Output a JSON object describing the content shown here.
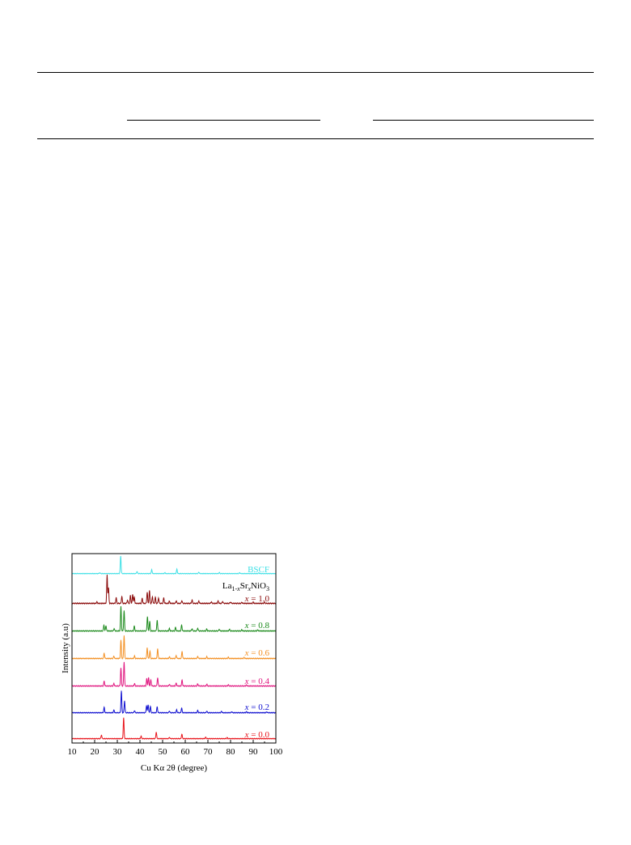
{
  "table": {
    "rules": [
      "top-rule",
      "sub-rule-left",
      "sub-rule-right",
      "bottom-rule"
    ]
  },
  "chart_data": {
    "type": "line",
    "xlabel": "Cu Kα 2θ (degree)",
    "ylabel": "Intensity (a.u)",
    "xlim": [
      10,
      100
    ],
    "xticks": [
      10,
      20,
      30,
      40,
      50,
      60,
      70,
      80,
      90,
      100
    ],
    "compound_label": "La1-xSrxNiO3",
    "series": [
      {
        "name": "x = 0.0",
        "color": "#e8141b",
        "peaks": [
          [
            23.0,
            0.18
          ],
          [
            32.8,
            1.0
          ],
          [
            40.5,
            0.12
          ],
          [
            47.2,
            0.32
          ],
          [
            53.0,
            0.06
          ],
          [
            58.5,
            0.22
          ],
          [
            69.0,
            0.07
          ],
          [
            78.5,
            0.05
          ]
        ]
      },
      {
        "name": "x = 0.2",
        "color": "#1010d0",
        "peaks": [
          [
            24.2,
            0.25
          ],
          [
            28.5,
            0.12
          ],
          [
            31.8,
            1.0
          ],
          [
            33.2,
            0.55
          ],
          [
            37.6,
            0.1
          ],
          [
            42.9,
            0.32
          ],
          [
            43.6,
            0.38
          ],
          [
            44.6,
            0.3
          ],
          [
            47.6,
            0.28
          ],
          [
            53.0,
            0.08
          ],
          [
            56.2,
            0.14
          ],
          [
            58.4,
            0.22
          ],
          [
            65.5,
            0.1
          ],
          [
            69.5,
            0.08
          ],
          [
            76.0,
            0.06
          ],
          [
            80.5,
            0.05
          ],
          [
            87.0,
            0.05
          ],
          [
            96.0,
            0.04
          ]
        ]
      },
      {
        "name": "x = 0.4",
        "color": "#e0157f",
        "peaks": [
          [
            24.2,
            0.2
          ],
          [
            28.5,
            0.1
          ],
          [
            31.6,
            0.75
          ],
          [
            33.0,
            1.0
          ],
          [
            37.6,
            0.1
          ],
          [
            43.0,
            0.3
          ],
          [
            43.8,
            0.35
          ],
          [
            44.8,
            0.25
          ],
          [
            47.8,
            0.35
          ],
          [
            53.0,
            0.07
          ],
          [
            56.0,
            0.12
          ],
          [
            58.6,
            0.25
          ],
          [
            65.5,
            0.09
          ],
          [
            69.5,
            0.07
          ],
          [
            79.0,
            0.05
          ],
          [
            87.0,
            0.04
          ]
        ]
      },
      {
        "name": "x = 0.6",
        "color": "#f39024",
        "peaks": [
          [
            24.2,
            0.22
          ],
          [
            28.5,
            0.1
          ],
          [
            31.6,
            0.75
          ],
          [
            33.0,
            0.95
          ],
          [
            37.6,
            0.1
          ],
          [
            43.2,
            0.45
          ],
          [
            44.4,
            0.3
          ],
          [
            47.8,
            0.4
          ],
          [
            53.0,
            0.07
          ],
          [
            56.0,
            0.12
          ],
          [
            58.6,
            0.3
          ],
          [
            65.5,
            0.09
          ],
          [
            69.5,
            0.07
          ],
          [
            79.0,
            0.05
          ],
          [
            86.0,
            0.04
          ]
        ]
      },
      {
        "name": "x = 0.8",
        "color": "#1c8a1c",
        "peaks": [
          [
            24.1,
            0.25
          ],
          [
            25.0,
            0.22
          ],
          [
            28.6,
            0.1
          ],
          [
            31.6,
            1.0
          ],
          [
            33.0,
            0.85
          ],
          [
            37.5,
            0.2
          ],
          [
            43.3,
            0.6
          ],
          [
            44.3,
            0.4
          ],
          [
            47.6,
            0.45
          ],
          [
            53.0,
            0.1
          ],
          [
            55.7,
            0.15
          ],
          [
            58.4,
            0.25
          ],
          [
            63.0,
            0.1
          ],
          [
            65.5,
            0.12
          ],
          [
            69.5,
            0.08
          ],
          [
            75.0,
            0.07
          ],
          [
            79.5,
            0.07
          ],
          [
            85.0,
            0.05
          ],
          [
            92.0,
            0.05
          ]
        ]
      },
      {
        "name": "x = 1.0",
        "color": "#8b0b0b",
        "peaks": [
          [
            21.0,
            0.05
          ],
          [
            25.5,
            1.0
          ],
          [
            26.1,
            0.55
          ],
          [
            29.5,
            0.2
          ],
          [
            32.0,
            0.25
          ],
          [
            34.5,
            0.12
          ],
          [
            35.8,
            0.28
          ],
          [
            36.8,
            0.32
          ],
          [
            37.5,
            0.22
          ],
          [
            41.0,
            0.18
          ],
          [
            43.2,
            0.4
          ],
          [
            44.2,
            0.45
          ],
          [
            45.5,
            0.25
          ],
          [
            46.8,
            0.22
          ],
          [
            48.2,
            0.2
          ],
          [
            50.5,
            0.2
          ],
          [
            53.0,
            0.08
          ],
          [
            56.0,
            0.1
          ],
          [
            58.5,
            0.1
          ],
          [
            63.0,
            0.12
          ],
          [
            66.0,
            0.08
          ],
          [
            71.5,
            0.06
          ],
          [
            74.5,
            0.08
          ],
          [
            76.5,
            0.07
          ],
          [
            80.0,
            0.05
          ],
          [
            85.0,
            0.04
          ],
          [
            90.0,
            0.04
          ],
          [
            95.0,
            0.04
          ]
        ]
      },
      {
        "name": "BSCF",
        "color": "#3fe0e6",
        "peaks": [
          [
            22.2,
            0.05
          ],
          [
            31.5,
            1.0
          ],
          [
            38.7,
            0.12
          ],
          [
            45.2,
            0.22
          ],
          [
            51.0,
            0.05
          ],
          [
            56.3,
            0.25
          ],
          [
            66.0,
            0.08
          ],
          [
            75.0,
            0.06
          ],
          [
            84.0,
            0.05
          ],
          [
            92.5,
            0.04
          ]
        ]
      }
    ]
  }
}
